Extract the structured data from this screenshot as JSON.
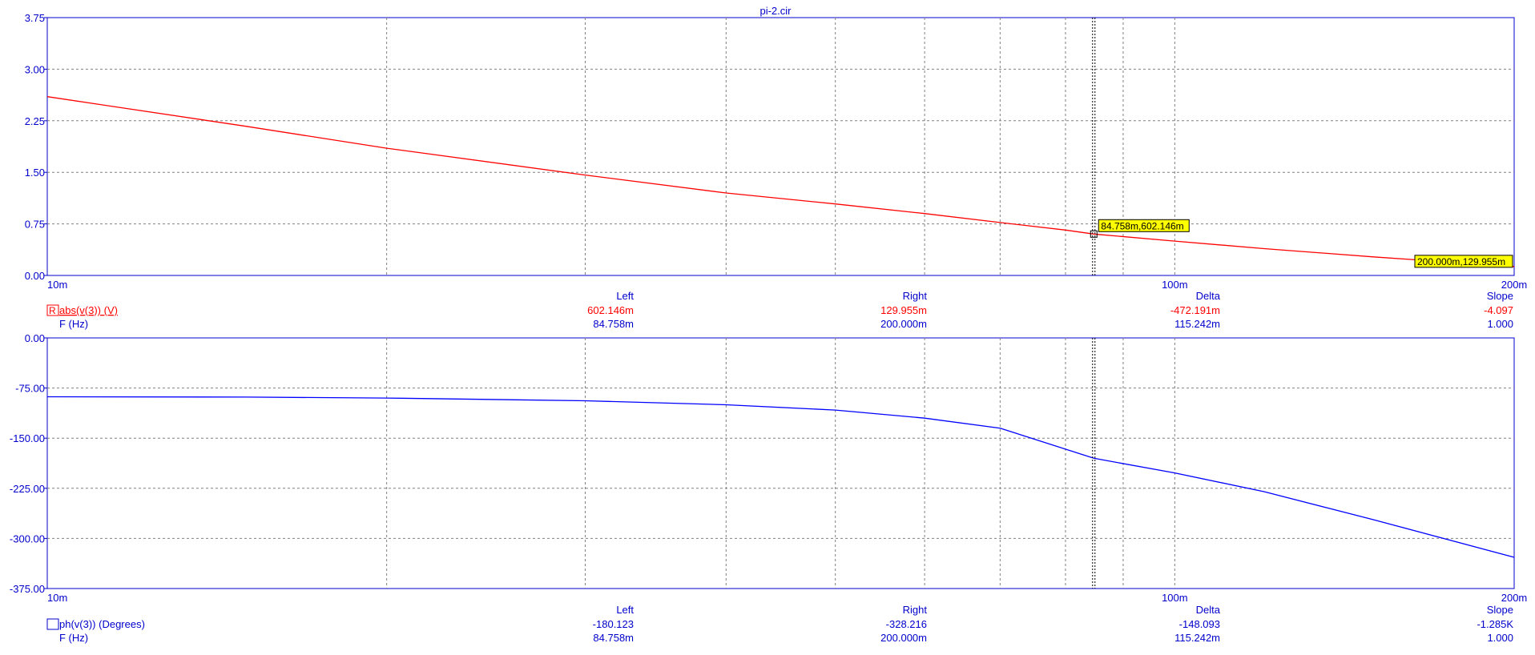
{
  "title": "pi-2.cir",
  "colors": {
    "axis": "#0000cc",
    "grid": "#808080",
    "trace_mag": "#ff0000",
    "trace_phase": "#0000ff",
    "tag_bg": "#ffff00",
    "cursor": "#000000"
  },
  "chart_data": [
    {
      "type": "line",
      "x_scale": "log",
      "xlim": [
        0.01,
        0.2
      ],
      "ylim": [
        0,
        3.75
      ],
      "x_tick_labels": [
        "10m",
        "100m",
        "200m"
      ],
      "y_tick_labels": [
        "3.75",
        "3.00",
        "2.25",
        "1.50",
        "0.75",
        "0.00"
      ],
      "grid": true,
      "series": [
        {
          "name": "abs(v(3)) (V)",
          "color": "#ff0000",
          "x": [
            0.01,
            0.015,
            0.02,
            0.03,
            0.04,
            0.05,
            0.06,
            0.07,
            0.08,
            0.084758,
            0.1,
            0.12,
            0.15,
            0.2
          ],
          "y": [
            2.6,
            2.17,
            1.85,
            1.46,
            1.2,
            1.04,
            0.9,
            0.77,
            0.66,
            0.602146,
            0.5,
            0.39,
            0.27,
            0.129955
          ]
        }
      ],
      "cursor_tags": [
        {
          "x": 0.084758,
          "y": 0.602146,
          "label": "84.758m,602.146m"
        },
        {
          "x": 0.2,
          "y": 0.129955,
          "label": "200.000m,129.955m"
        }
      ],
      "readout": {
        "headers": [
          "Left",
          "Right",
          "Delta",
          "Slope"
        ],
        "trace_label": "abs(v(3)) (V)",
        "trace_marker": "R",
        "trace_values": [
          "602.146m",
          "129.955m",
          "-472.191m",
          "-4.097"
        ],
        "x_label": "F (Hz)",
        "x_values": [
          "84.758m",
          "200.000m",
          "115.242m",
          "1.000"
        ]
      }
    },
    {
      "type": "line",
      "x_scale": "log",
      "xlim": [
        0.01,
        0.2
      ],
      "ylim": [
        -375,
        0
      ],
      "x_tick_labels": [
        "10m",
        "100m",
        "200m"
      ],
      "y_tick_labels": [
        "0.00",
        "-75.00",
        "-150.00",
        "-225.00",
        "-300.00",
        "-375.00"
      ],
      "grid": true,
      "series": [
        {
          "name": "ph(v(3)) (Degrees)",
          "color": "#0000ff",
          "x": [
            0.01,
            0.015,
            0.02,
            0.03,
            0.04,
            0.05,
            0.06,
            0.07,
            0.084758,
            0.1,
            0.12,
            0.15,
            0.2
          ],
          "y": [
            -88,
            -88.5,
            -90,
            -94,
            -100,
            -108,
            -120,
            -135,
            -180.123,
            -202,
            -230,
            -272,
            -328.216
          ]
        }
      ],
      "readout": {
        "headers": [
          "Left",
          "Right",
          "Delta",
          "Slope"
        ],
        "trace_label": "ph(v(3)) (Degrees)",
        "trace_values": [
          "-180.123",
          "-328.216",
          "-148.093",
          "-1.285K"
        ],
        "x_label": "F (Hz)",
        "x_values": [
          "84.758m",
          "200.000m",
          "115.242m",
          "1.000"
        ]
      }
    }
  ]
}
